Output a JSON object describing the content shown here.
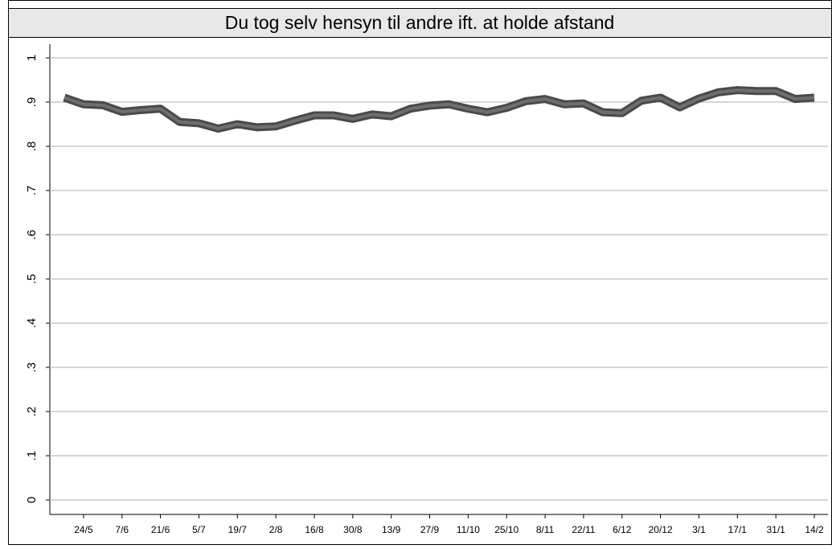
{
  "chart_data": {
    "type": "line",
    "title": "Du tog selv hensyn til andre ift. at holde afstand",
    "categories": [
      null,
      "24/5",
      null,
      "7/6",
      null,
      "21/6",
      null,
      "5/7",
      null,
      "19/7",
      null,
      "2/8",
      null,
      "16/8",
      null,
      "30/8",
      null,
      "13/9",
      null,
      "27/9",
      null,
      "11/10",
      null,
      "25/10",
      null,
      "8/11",
      null,
      "22/11",
      null,
      "6/12",
      null,
      "20/12",
      null,
      "3/1",
      null,
      "17/1",
      null,
      "31/1",
      null,
      "14/2"
    ],
    "values": [
      0.91,
      0.895,
      0.893,
      0.878,
      0.882,
      0.885,
      0.855,
      0.852,
      0.84,
      0.85,
      0.843,
      0.845,
      0.858,
      0.87,
      0.87,
      0.862,
      0.872,
      0.868,
      0.885,
      0.892,
      0.895,
      0.885,
      0.877,
      0.887,
      0.902,
      0.907,
      0.895,
      0.897,
      0.877,
      0.875,
      0.903,
      0.91,
      0.888,
      0.908,
      0.922,
      0.927,
      0.925,
      0.925,
      0.907,
      0.91
    ],
    "color": "#6e6e6e",
    "ylim": [
      0,
      1
    ],
    "yticks": [
      0,
      {
        "value": 0.1,
        "label": ".1"
      },
      {
        "value": 0.2,
        "label": ".2"
      },
      {
        "value": 0.3,
        "label": ".3"
      },
      {
        "value": 0.4,
        "label": ".4"
      },
      {
        "value": 0.5,
        "label": ".5"
      },
      {
        "value": 0.6,
        "label": ".6"
      },
      {
        "value": 0.7,
        "label": ".7"
      },
      {
        "value": 0.8,
        "label": ".8"
      },
      {
        "value": 0.9,
        "label": ".9"
      },
      1
    ],
    "grid": true
  }
}
